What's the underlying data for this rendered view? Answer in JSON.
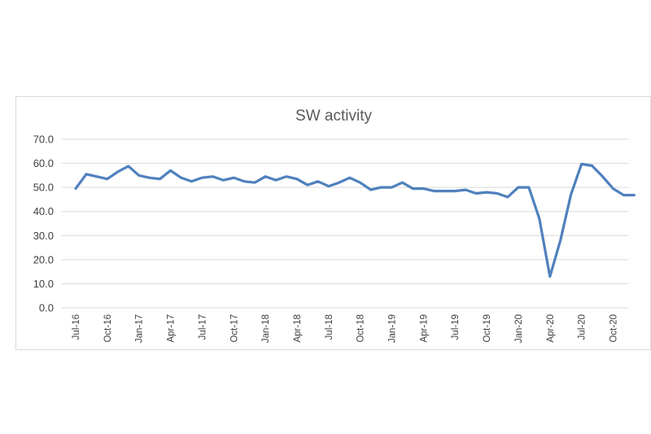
{
  "chart_data": {
    "type": "line",
    "title": "SW activity",
    "xlabel": "",
    "ylabel": "",
    "ylim": [
      0,
      70
    ],
    "yticks": [
      "0.0",
      "10.0",
      "20.0",
      "30.0",
      "40.0",
      "50.0",
      "60.0",
      "70.0"
    ],
    "grid": true,
    "legend": "none",
    "x": [
      "Jul-16",
      "Aug-16",
      "Sep-16",
      "Oct-16",
      "Nov-16",
      "Dec-16",
      "Jan-17",
      "Feb-17",
      "Mar-17",
      "Apr-17",
      "May-17",
      "Jun-17",
      "Jul-17",
      "Aug-17",
      "Sep-17",
      "Oct-17",
      "Nov-17",
      "Dec-17",
      "Jan-18",
      "Feb-18",
      "Mar-18",
      "Apr-18",
      "May-18",
      "Jun-18",
      "Jul-18",
      "Aug-18",
      "Sep-18",
      "Oct-18",
      "Nov-18",
      "Dec-18",
      "Jan-19",
      "Feb-19",
      "Mar-19",
      "Apr-19",
      "May-19",
      "Jun-19",
      "Jul-19",
      "Aug-19",
      "Sep-19",
      "Oct-19",
      "Nov-19",
      "Dec-19",
      "Jan-20",
      "Feb-20",
      "Mar-20",
      "Apr-20",
      "May-20",
      "Jun-20",
      "Jul-20",
      "Aug-20",
      "Sep-20",
      "Oct-20",
      "Nov-20",
      "Dec-20"
    ],
    "x_tick_labels": [
      "Jul-16",
      "Oct-16",
      "Jan-17",
      "Apr-17",
      "Jul-17",
      "Oct-17",
      "Jan-18",
      "Apr-18",
      "Jul-18",
      "Oct-18",
      "Jan-19",
      "Apr-19",
      "Jul-19",
      "Oct-19",
      "Jan-20",
      "Apr-20",
      "Jul-20",
      "Oct-20"
    ],
    "series": [
      {
        "name": "",
        "color": "#4f81bd",
        "values": [
          49.5,
          55.5,
          54.5,
          53.5,
          56.5,
          58.8,
          55.0,
          54.0,
          53.5,
          57.0,
          54.0,
          52.5,
          54.0,
          54.5,
          53.0,
          54.0,
          52.5,
          52.0,
          54.5,
          53.0,
          54.5,
          53.5,
          51.0,
          52.5,
          50.5,
          52.0,
          54.0,
          52.0,
          49.0,
          50.0,
          50.0,
          52.0,
          49.5,
          49.5,
          48.5,
          48.5,
          48.5,
          49.0,
          47.5,
          48.0,
          47.5,
          46.0,
          50.0,
          50.0,
          37.0,
          13.0,
          28.0,
          47.0,
          59.7,
          59.0,
          54.5,
          49.5,
          46.8,
          46.8
        ]
      }
    ]
  }
}
